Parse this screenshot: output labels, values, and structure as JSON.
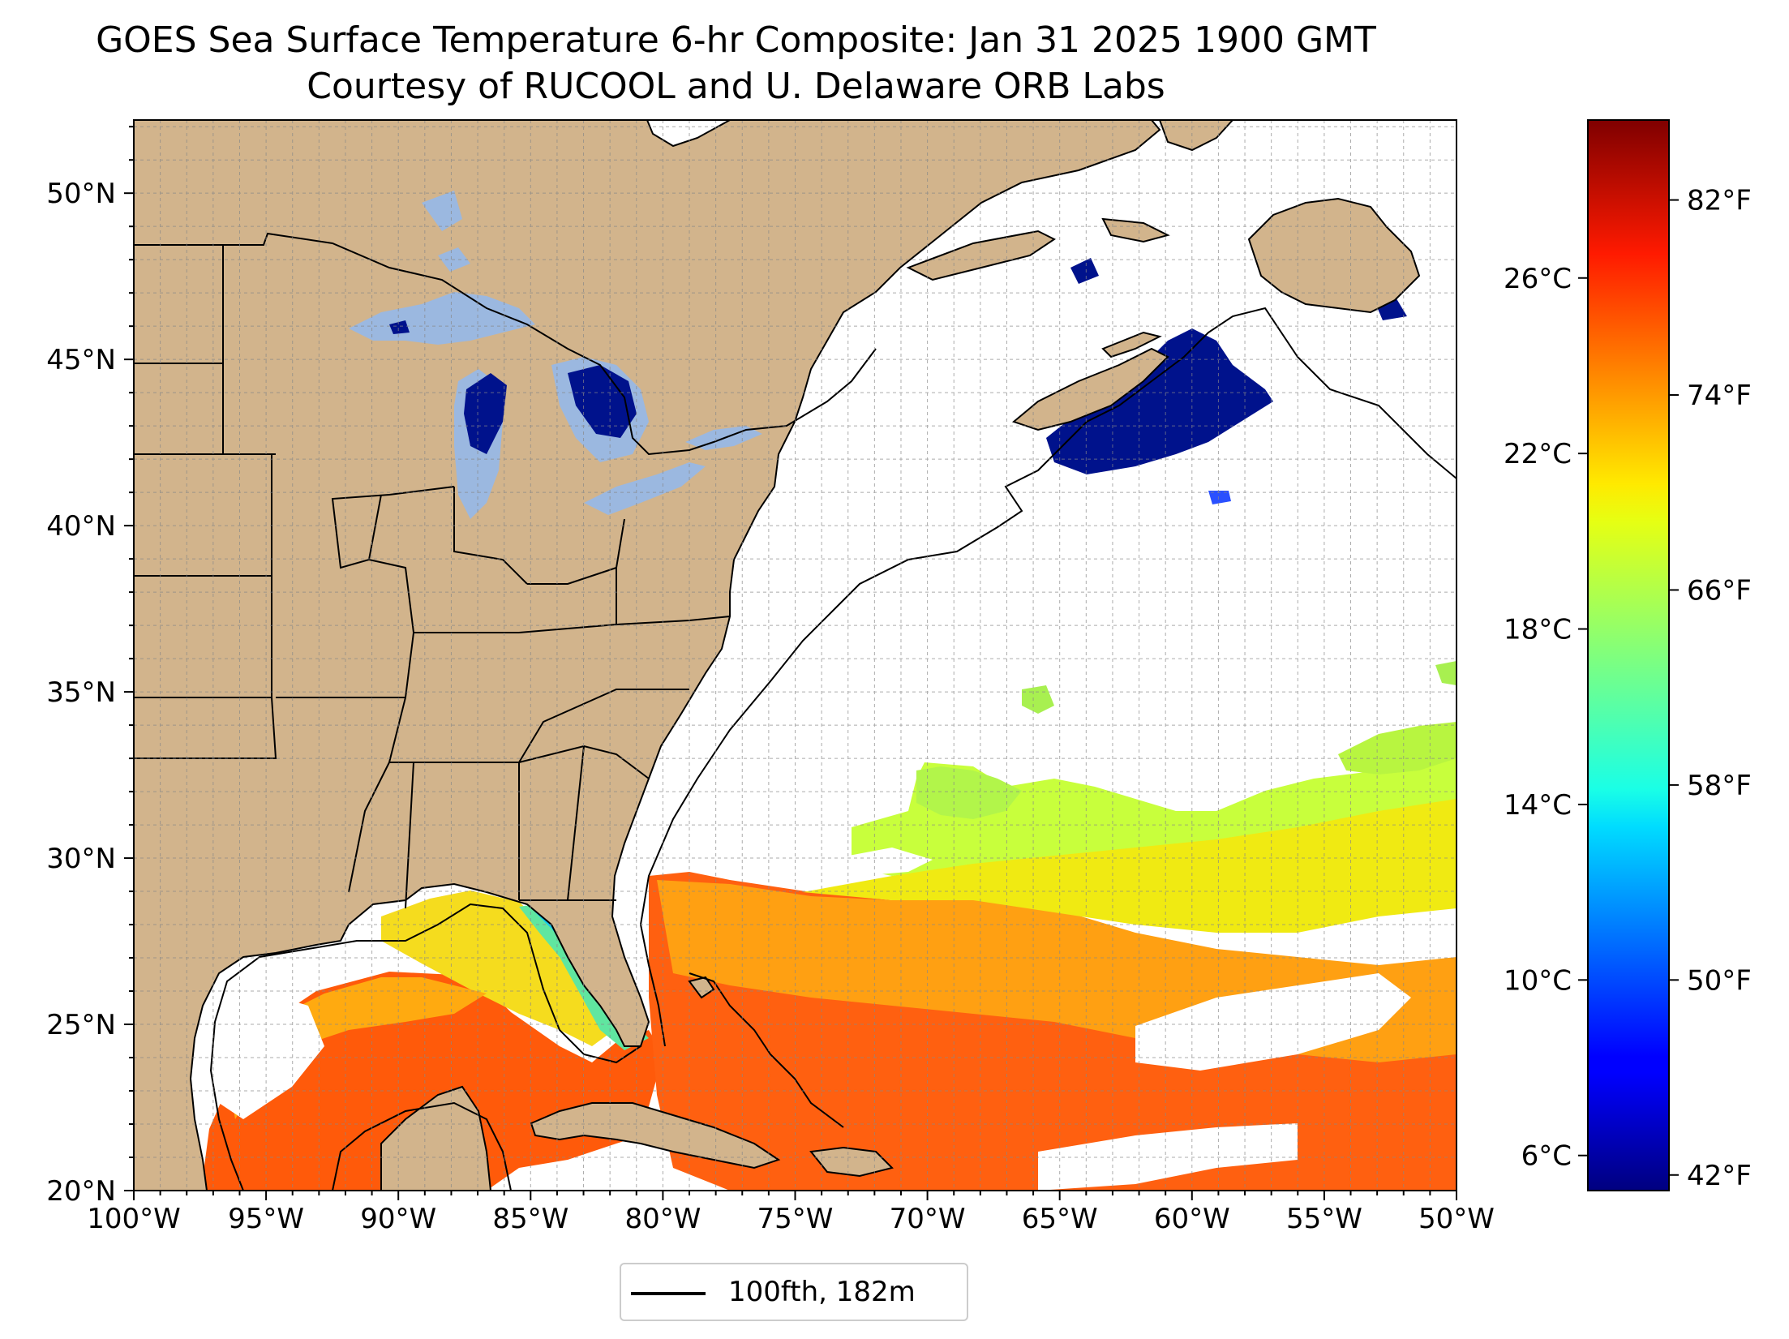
{
  "title": "GOES Sea Surface Temperature 6-hr Composite: Jan 31 2025 1900 GMT",
  "subtitle": "Courtesy of RUCOOL and U. Delaware ORB Labs",
  "map": {
    "lon_range": [
      -100,
      -50
    ],
    "lat_range": [
      20,
      52.2
    ],
    "lon_ticks": [
      {
        "value": -100,
        "label": "100°W"
      },
      {
        "value": -95,
        "label": "95°W"
      },
      {
        "value": -90,
        "label": "90°W"
      },
      {
        "value": -85,
        "label": "85°W"
      },
      {
        "value": -80,
        "label": "80°W"
      },
      {
        "value": -75,
        "label": "75°W"
      },
      {
        "value": -70,
        "label": "70°W"
      },
      {
        "value": -65,
        "label": "65°W"
      },
      {
        "value": -60,
        "label": "60°W"
      },
      {
        "value": -55,
        "label": "55°W"
      },
      {
        "value": -50,
        "label": "50°W"
      }
    ],
    "lat_ticks": [
      {
        "value": 20,
        "label": "20°N"
      },
      {
        "value": 25,
        "label": "25°N"
      },
      {
        "value": 30,
        "label": "30°N"
      },
      {
        "value": 35,
        "label": "35°N"
      },
      {
        "value": 40,
        "label": "40°N"
      },
      {
        "value": 45,
        "label": "45°N"
      },
      {
        "value": 50,
        "label": "50°N"
      }
    ],
    "gridlines": "1 degree, dashed",
    "land_color": "#d2b48c",
    "lake_color": "#9bb8e0",
    "ocean_color": "#ffffff"
  },
  "colorbar": {
    "colormap": "jet",
    "range_c": [
      5.2,
      29.6
    ],
    "celsius_ticks": [
      {
        "value": 6,
        "label": "6°C"
      },
      {
        "value": 10,
        "label": "10°C"
      },
      {
        "value": 14,
        "label": "14°C"
      },
      {
        "value": 18,
        "label": "18°C"
      },
      {
        "value": 22,
        "label": "22°C"
      },
      {
        "value": 26,
        "label": "26°C"
      }
    ],
    "fahrenheit_ticks": [
      {
        "value": 42,
        "label": "42°F"
      },
      {
        "value": 50,
        "label": "50°F"
      },
      {
        "value": 58,
        "label": "58°F"
      },
      {
        "value": 66,
        "label": "66°F"
      },
      {
        "value": 74,
        "label": "74°F"
      },
      {
        "value": 82,
        "label": "82°F"
      }
    ]
  },
  "legend": {
    "label": "100fth, 182m",
    "line_color": "#000000"
  }
}
